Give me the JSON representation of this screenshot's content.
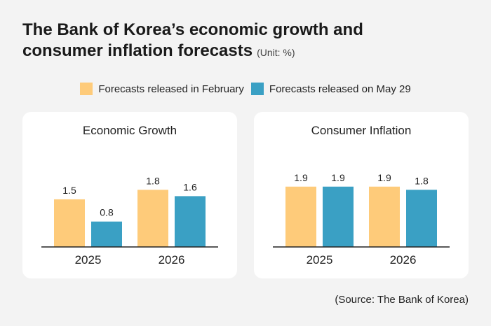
{
  "header": {
    "title_line1": "The Bank of Korea’s economic growth and",
    "title_line2": "consumer inflation forecasts",
    "unit": "(Unit: %)"
  },
  "legend": {
    "feb_label": "Forecasts released in February",
    "may_label": "Forecasts released on May 29"
  },
  "colors": {
    "feb": "#fecb7a",
    "may": "#3aa0c4",
    "axis": "#222222",
    "text": "#222222"
  },
  "source": "(Source: The Bank of Korea)",
  "chart_data": [
    {
      "type": "bar",
      "title": "Economic Growth",
      "categories": [
        "2025",
        "2026"
      ],
      "series": [
        {
          "name": "Forecasts released in February",
          "values": [
            1.5,
            1.8
          ]
        },
        {
          "name": "Forecasts released on May 29",
          "values": [
            0.8,
            1.6
          ]
        }
      ],
      "ylim": [
        0,
        2.6
      ],
      "xlabel": "",
      "ylabel": ""
    },
    {
      "type": "bar",
      "title": "Consumer Inflation",
      "categories": [
        "2025",
        "2026"
      ],
      "series": [
        {
          "name": "Forecasts released in February",
          "values": [
            1.9,
            1.9
          ]
        },
        {
          "name": "Forecasts released on May 29",
          "values": [
            1.9,
            1.8
          ]
        }
      ],
      "ylim": [
        0,
        2.6
      ],
      "xlabel": "",
      "ylabel": ""
    }
  ]
}
